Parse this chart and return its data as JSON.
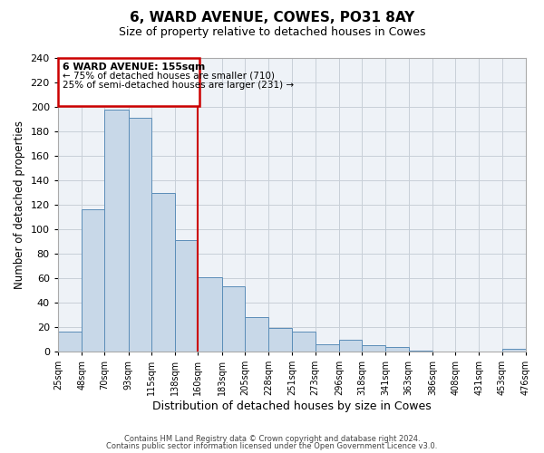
{
  "title": "6, WARD AVENUE, COWES, PO31 8AY",
  "subtitle": "Size of property relative to detached houses in Cowes",
  "xlabel": "Distribution of detached houses by size in Cowes",
  "ylabel": "Number of detached properties",
  "bar_color": "#c8d8e8",
  "bar_edge_color": "#5b8db8",
  "grid_color": "#c8cfd8",
  "bg_color": "#eef2f7",
  "vline_x": 160,
  "vline_color": "#cc0000",
  "bin_edges": [
    25,
    48,
    70,
    93,
    115,
    138,
    160,
    183,
    205,
    228,
    251,
    273,
    296,
    318,
    341,
    363,
    386,
    408,
    431,
    453,
    476
  ],
  "bin_heights": [
    16,
    116,
    198,
    191,
    130,
    91,
    61,
    53,
    28,
    19,
    16,
    6,
    10,
    5,
    4,
    1,
    0,
    0,
    0,
    2
  ],
  "tick_labels": [
    "25sqm",
    "48sqm",
    "70sqm",
    "93sqm",
    "115sqm",
    "138sqm",
    "160sqm",
    "183sqm",
    "205sqm",
    "228sqm",
    "251sqm",
    "273sqm",
    "296sqm",
    "318sqm",
    "341sqm",
    "363sqm",
    "386sqm",
    "408sqm",
    "431sqm",
    "453sqm",
    "476sqm"
  ],
  "ylim": [
    0,
    240
  ],
  "yticks": [
    0,
    20,
    40,
    60,
    80,
    100,
    120,
    140,
    160,
    180,
    200,
    220,
    240
  ],
  "annotation_title": "6 WARD AVENUE: 155sqm",
  "annotation_line1": "← 75% of detached houses are smaller (710)",
  "annotation_line2": "25% of semi-detached houses are larger (231) →",
  "footer1": "Contains HM Land Registry data © Crown copyright and database right 2024.",
  "footer2": "Contains public sector information licensed under the Open Government Licence v3.0."
}
